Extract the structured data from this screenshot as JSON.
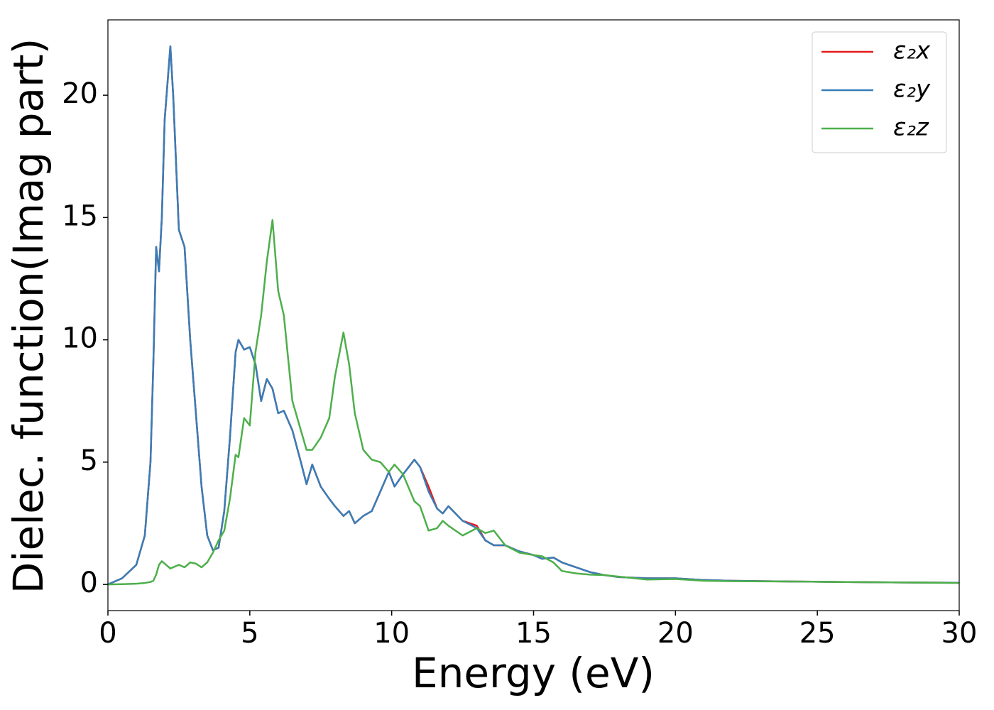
{
  "chart_data": {
    "type": "line",
    "xlabel": "Energy (eV)",
    "ylabel": "Dielec. function(Imag part)",
    "x": [
      0,
      0.5,
      1.0,
      1.3,
      1.5,
      1.6,
      1.7,
      1.8,
      1.9,
      2.0,
      2.2,
      2.3,
      2.5,
      2.7,
      2.9,
      3.1,
      3.3,
      3.5,
      3.7,
      3.9,
      4.1,
      4.3,
      4.5,
      4.6,
      4.8,
      5.0,
      5.2,
      5.4,
      5.6,
      5.8,
      6.0,
      6.2,
      6.5,
      6.8,
      7.0,
      7.2,
      7.5,
      7.8,
      8.0,
      8.3,
      8.5,
      8.7,
      9.0,
      9.3,
      9.6,
      9.9,
      10.1,
      10.4,
      10.8,
      11.0,
      11.3,
      11.6,
      11.8,
      12.0,
      12.5,
      13.0,
      13.3,
      13.6,
      14.0,
      14.5,
      15.0,
      15.3,
      15.7,
      16.0,
      16.5,
      17.0,
      17.5,
      18.0,
      19.0,
      20.0,
      21,
      22,
      24,
      26,
      28,
      30
    ],
    "series": [
      {
        "name": "ε₂x",
        "color": "#e41a1c",
        "values": [
          0,
          0.25,
          0.8,
          2,
          5,
          9,
          13.8,
          12.8,
          15,
          19,
          22,
          20,
          14.5,
          13.8,
          10,
          7,
          4,
          2,
          1.4,
          1.5,
          3,
          6,
          9.5,
          10,
          9.6,
          9.7,
          9,
          7.5,
          8.4,
          8,
          7,
          7.1,
          6.3,
          5,
          4.1,
          4.9,
          4,
          3.5,
          3.2,
          2.8,
          3,
          2.5,
          2.8,
          3,
          3.8,
          4.6,
          4,
          4.5,
          5.1,
          4.8,
          4.0,
          3.1,
          2.9,
          3.2,
          2.6,
          2.4,
          1.8,
          1.6,
          1.6,
          1.35,
          1.2,
          1.05,
          1.1,
          0.9,
          0.7,
          0.5,
          0.38,
          0.3,
          0.25,
          0.25,
          0.18,
          0.15,
          0.12,
          0.1,
          0.08,
          0.07
        ]
      },
      {
        "name": "ε₂y",
        "color": "#377eb8",
        "values": [
          0,
          0.25,
          0.8,
          2,
          5,
          9,
          13.8,
          12.8,
          15,
          19,
          22,
          20,
          14.5,
          13.8,
          10,
          7,
          4,
          2,
          1.4,
          1.5,
          3,
          6,
          9.5,
          10,
          9.6,
          9.7,
          9,
          7.5,
          8.4,
          8,
          7,
          7.1,
          6.3,
          5,
          4.1,
          4.9,
          4,
          3.5,
          3.2,
          2.8,
          3,
          2.5,
          2.8,
          3,
          3.8,
          4.6,
          4,
          4.5,
          5.1,
          4.8,
          3.8,
          3.1,
          2.9,
          3.2,
          2.6,
          2.3,
          1.8,
          1.6,
          1.6,
          1.35,
          1.2,
          1.05,
          1.1,
          0.9,
          0.7,
          0.5,
          0.38,
          0.3,
          0.25,
          0.25,
          0.18,
          0.15,
          0.12,
          0.1,
          0.08,
          0.07
        ]
      },
      {
        "name": "ε₂z",
        "color": "#4daf4a",
        "values": [
          0,
          0.01,
          0.03,
          0.06,
          0.1,
          0.15,
          0.4,
          0.8,
          0.95,
          0.85,
          0.65,
          0.7,
          0.8,
          0.7,
          0.9,
          0.85,
          0.7,
          0.9,
          1.3,
          1.8,
          2.2,
          3.5,
          5.3,
          5.2,
          6.8,
          6.5,
          9.5,
          11,
          13.2,
          14.9,
          12,
          11,
          7.5,
          6.3,
          5.5,
          5.5,
          6,
          6.8,
          8.5,
          10.3,
          9,
          7,
          5.5,
          5.1,
          5,
          4.6,
          4.9,
          4.5,
          3.4,
          3.2,
          2.2,
          2.3,
          2.6,
          2.4,
          2.0,
          2.3,
          2.1,
          2.2,
          1.6,
          1.3,
          1.2,
          1.15,
          0.9,
          0.55,
          0.45,
          0.4,
          0.38,
          0.32,
          0.2,
          0.22,
          0.15,
          0.13,
          0.12,
          0.1,
          0.08,
          0.06
        ]
      }
    ],
    "xlim": [
      0,
      30
    ],
    "xticks": [
      0,
      5,
      10,
      15,
      20,
      25,
      30
    ],
    "ylim": [
      -1.07,
      23.08
    ],
    "yticks": [
      0,
      5,
      10,
      15,
      20
    ],
    "grid": false,
    "legend": "upper right"
  }
}
